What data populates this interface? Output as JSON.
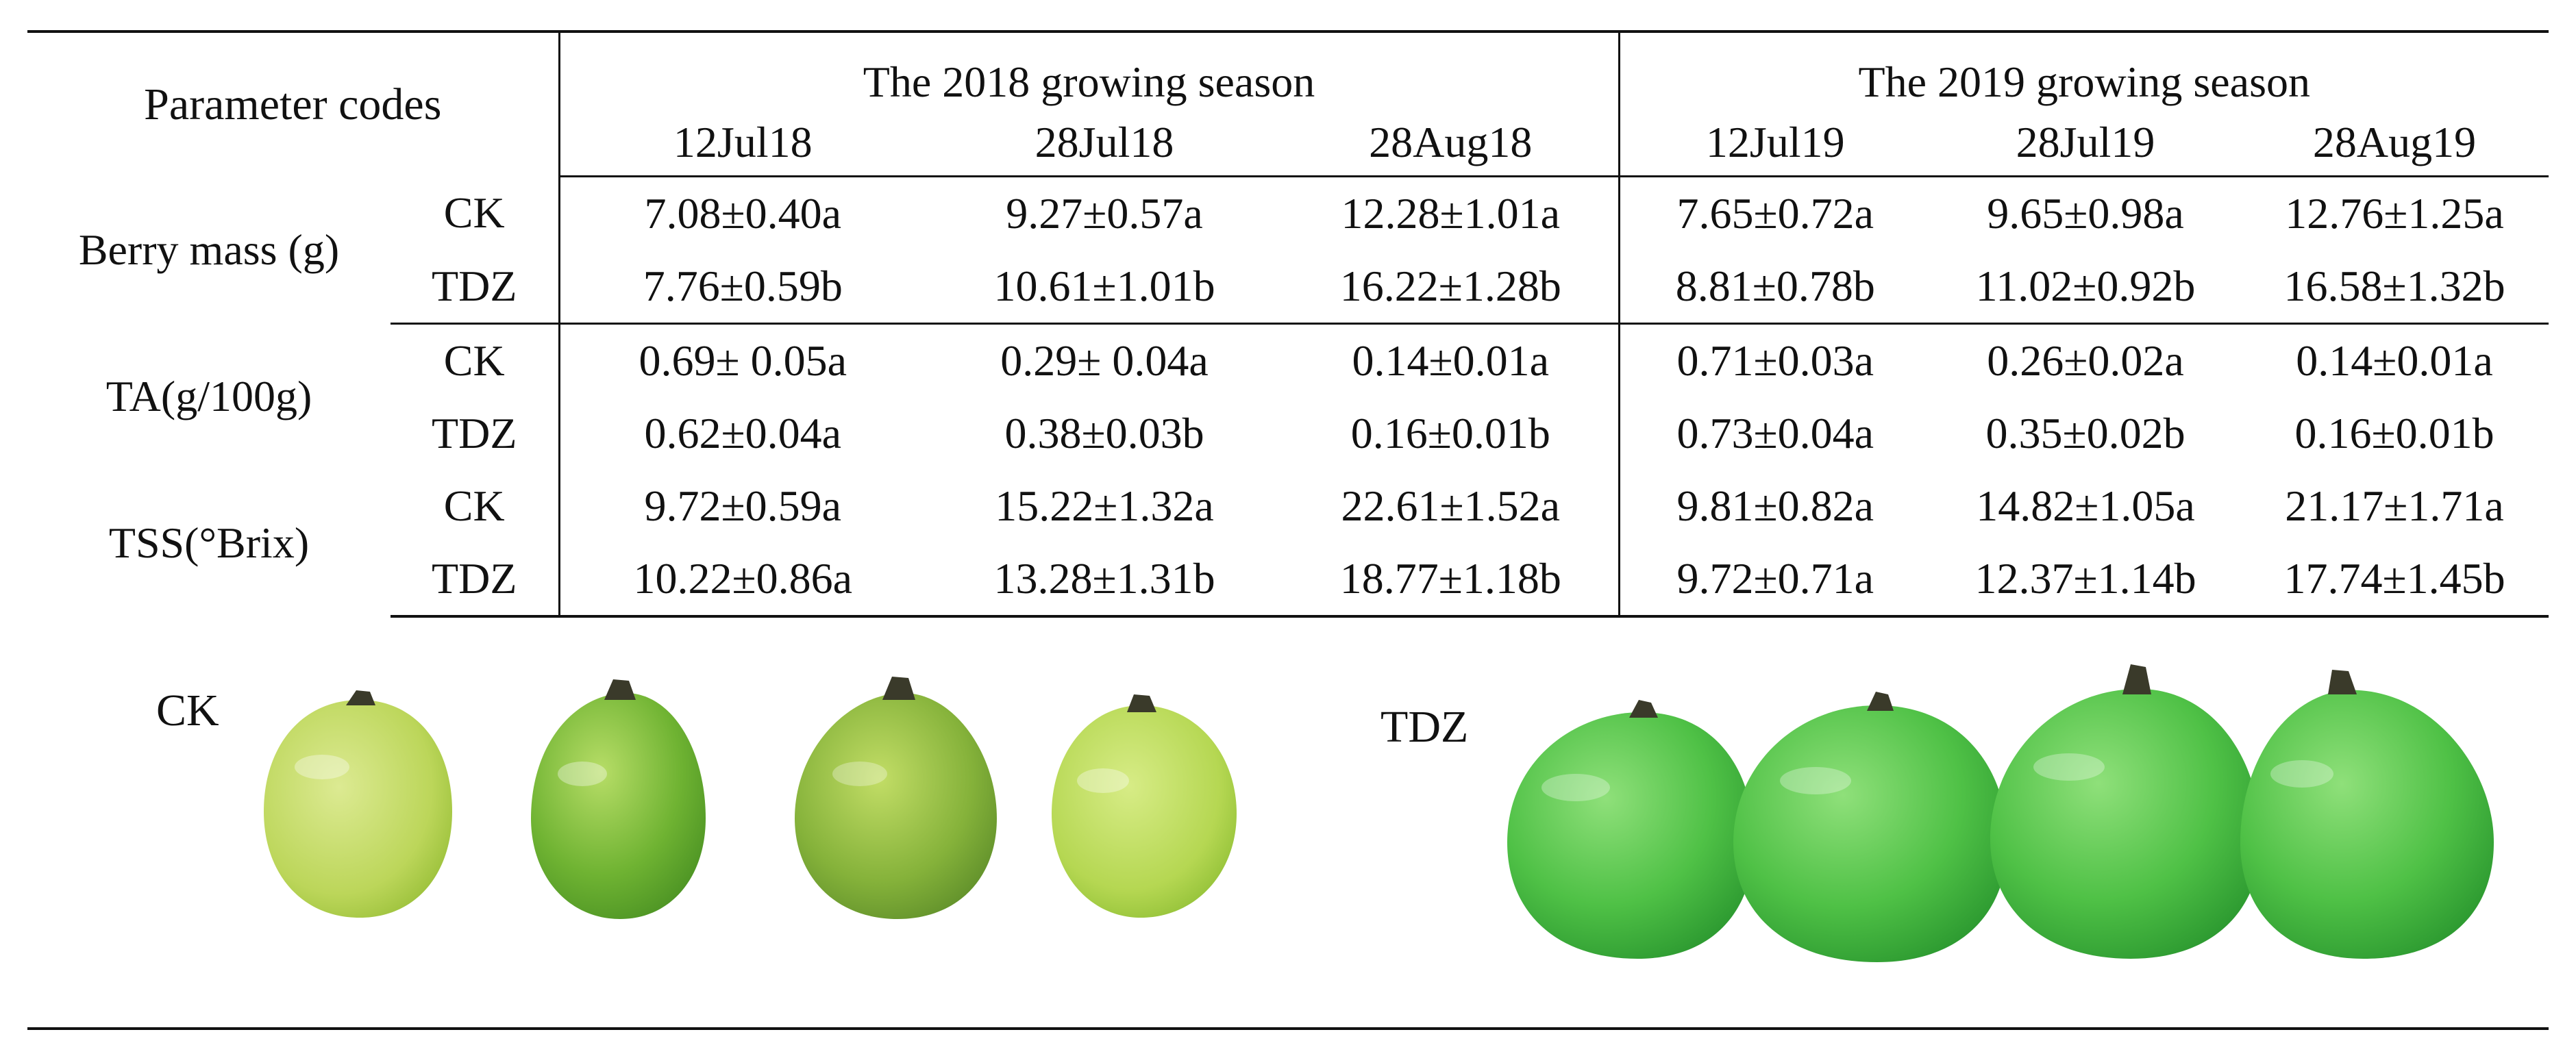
{
  "table": {
    "header": {
      "parameter_codes": "Parameter codes",
      "season_2018": "The 2018 growing season",
      "season_2019": "The 2019 growing season",
      "dates_2018": [
        "12Jul18",
        "28Jul18",
        "28Aug18"
      ],
      "dates_2019": [
        "12Jul19",
        "28Jul19",
        "28Aug19"
      ]
    },
    "groups": [
      {
        "parameter": "Berry mass (g)",
        "rows": [
          {
            "treatment": "CK",
            "values": [
              "7.08±0.40a",
              "9.27±0.57a",
              "12.28±1.01a",
              "7.65±0.72a",
              "9.65±0.98a",
              "12.76±1.25a"
            ]
          },
          {
            "treatment": "TDZ",
            "values": [
              "7.76±0.59b",
              "10.61±1.01b",
              "16.22±1.28b",
              "8.81±0.78b",
              "11.02±0.92b",
              "16.58±1.32b"
            ]
          }
        ]
      },
      {
        "parameter": "TA(g/100g)",
        "rows": [
          {
            "treatment": "CK",
            "values": [
              "0.69± 0.05a",
              "0.29± 0.04a",
              "0.14±0.01a",
              "0.71±0.03a",
              "0.26±0.02a",
              "0.14±0.01a"
            ]
          },
          {
            "treatment": "TDZ",
            "values": [
              "0.62±0.04a",
              "0.38±0.03b",
              "0.16±0.01b",
              "0.73±0.04a",
              "0.35±0.02b",
              "0.16±0.01b"
            ]
          }
        ]
      },
      {
        "parameter": "TSS(°Brix)",
        "rows": [
          {
            "treatment": "CK",
            "values": [
              "9.72±0.59a",
              "15.22±1.32a",
              "22.61±1.52a",
              "9.81±0.82a",
              "14.82±1.05a",
              "21.17±1.71a"
            ]
          },
          {
            "treatment": "TDZ",
            "values": [
              "10.22±0.86a",
              "13.28±1.31b",
              "18.77±1.18b",
              "9.72±0.71a",
              "12.37±1.14b",
              "17.74±1.45b"
            ]
          }
        ]
      }
    ]
  },
  "photos": {
    "ck_label": "CK",
    "tdz_label": "TDZ",
    "berry_colors": {
      "ck_light": "#c9e07a",
      "ck_mid": "#a8cc4a",
      "ck_dark": "#6fae2e",
      "tdz_light": "#7fd36a",
      "tdz_mid": "#4fbb45",
      "tdz_dark": "#2e9a32",
      "stem": "#3a3a2a"
    }
  }
}
